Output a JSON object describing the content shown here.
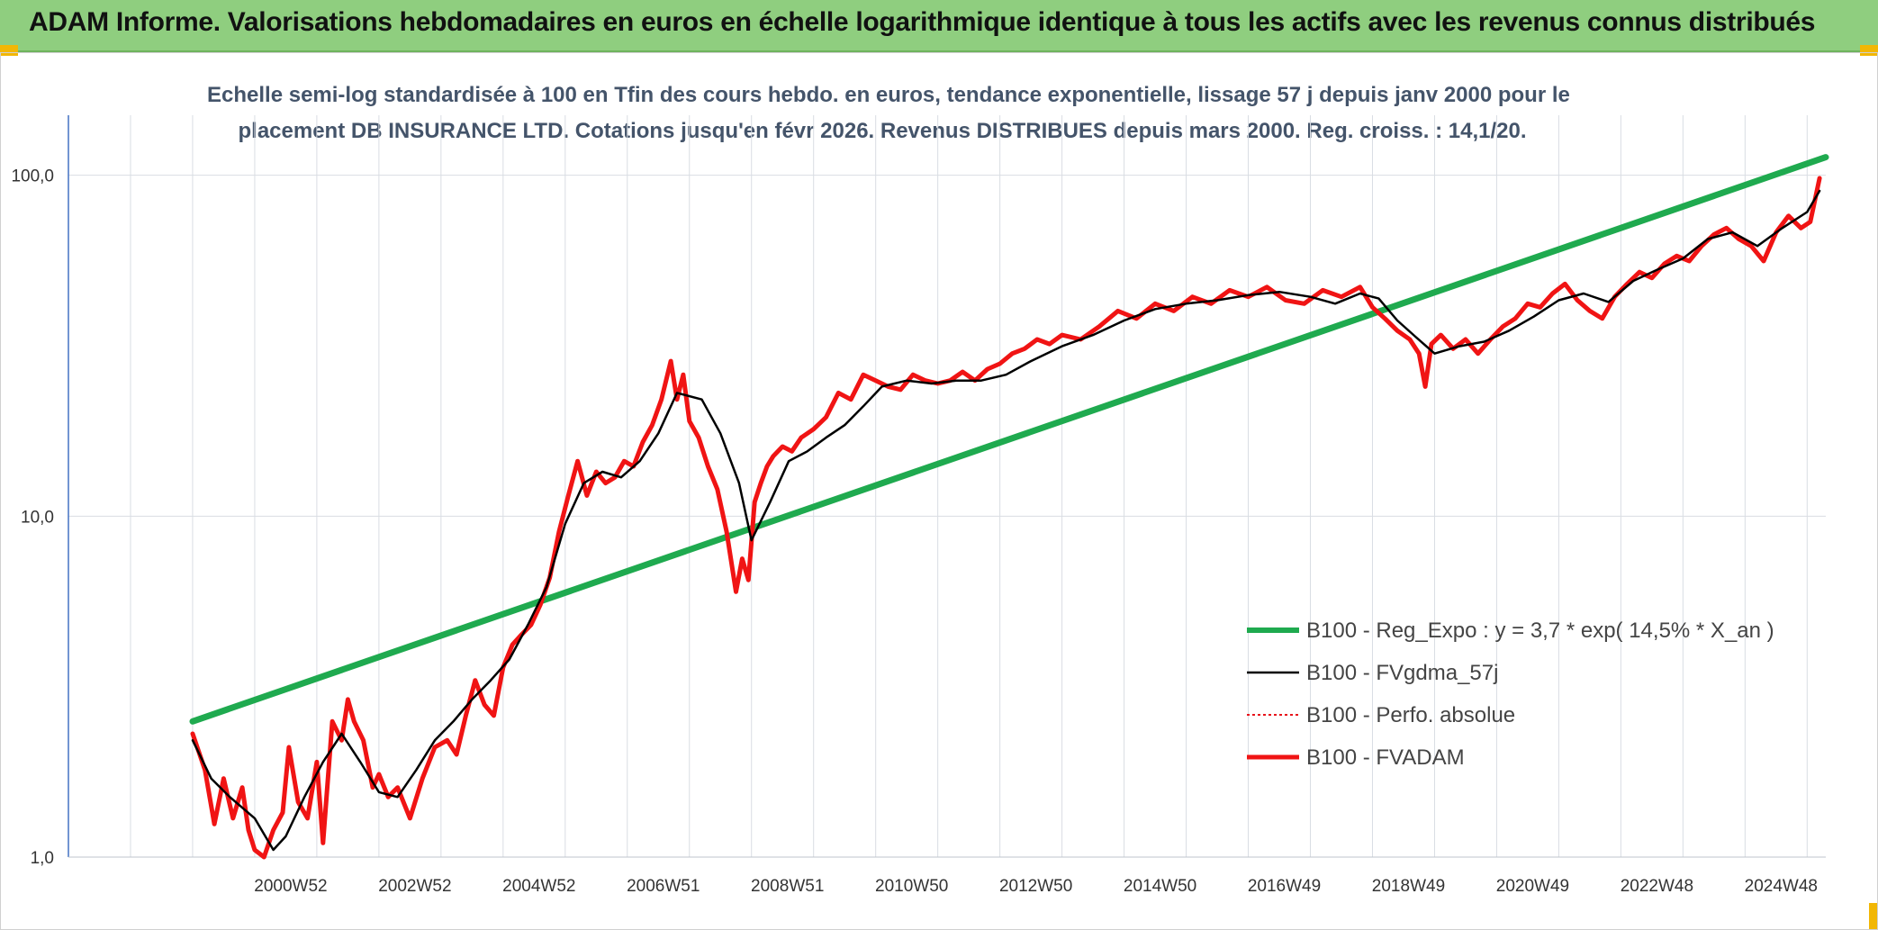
{
  "header": {
    "title": "ADAM Informe. Valorisations hebdomadaires en euros en échelle logarithmique identique à tous les actifs avec les revenus connus distribués"
  },
  "subtitle": {
    "line1": "Echelle semi-log standardisée à 100 en Tfin des cours hebdo. en euros, tendance exponentielle, lissage 57 j depuis janv 2000 pour le",
    "line2": "placement DB INSURANCE LTD. Cotations jusqu'en févr 2026. Revenus DISTRIBUES depuis mars 2000. Reg. croiss. : 14,1/20."
  },
  "colors": {
    "header_bg": "#8fce7f",
    "reg_expo": "#1faa4f",
    "fvgdma": "#000000",
    "perfo": "#e8141c",
    "fvadam": "#f01414",
    "axis": "#4472c4",
    "grid": "#d9dde3"
  },
  "chart_data": {
    "type": "line",
    "y_scale": "log",
    "ylim": [
      1,
      150
    ],
    "y_ticks": [
      "1,0",
      "10,0",
      "100,0"
    ],
    "y_tick_values": [
      1,
      10,
      100
    ],
    "x_range": [
      1998.0,
      2026.3
    ],
    "x_ticks": [
      "2000W52",
      "2002W52",
      "2004W52",
      "2006W51",
      "2008W51",
      "2010W50",
      "2012W50",
      "2014W50",
      "2016W49",
      "2018W49",
      "2020W49",
      "2022W48",
      "2024W48"
    ],
    "x_tick_values": [
      2001.0,
      2003.0,
      2005.0,
      2007.0,
      2009.0,
      2011.0,
      2013.0,
      2015.0,
      2017.0,
      2019.0,
      2021.0,
      2023.0,
      2025.0
    ],
    "grid": true,
    "legend_position": "bottom-right",
    "series": [
      {
        "name": "B100 - Reg_Expo : y = 3,7 * exp( 14,5% *  X_an )",
        "style": "thick-green",
        "x": [
          2000.0,
          2026.3
        ],
        "y": [
          2.5,
          113
        ]
      },
      {
        "name": "B100 - FVgdma_57j",
        "style": "thin-black",
        "x": [
          2000.0,
          2000.3,
          2000.6,
          2001.0,
          2001.3,
          2001.5,
          2001.8,
          2002.1,
          2002.4,
          2002.7,
          2003.0,
          2003.3,
          2003.6,
          2003.9,
          2004.2,
          2004.5,
          2004.8,
          2005.1,
          2005.4,
          2005.7,
          2006.0,
          2006.3,
          2006.6,
          2006.9,
          2007.2,
          2007.5,
          2007.8,
          2008.2,
          2008.5,
          2008.8,
          2009.0,
          2009.3,
          2009.6,
          2009.9,
          2010.2,
          2010.5,
          2010.8,
          2011.1,
          2011.5,
          2011.9,
          2012.3,
          2012.7,
          2013.1,
          2013.5,
          2014.0,
          2014.5,
          2015.0,
          2015.5,
          2016.0,
          2016.5,
          2017.0,
          2017.5,
          2018.0,
          2018.4,
          2018.8,
          2019.1,
          2019.4,
          2019.7,
          2020.0,
          2020.4,
          2020.8,
          2021.2,
          2021.6,
          2022.0,
          2022.4,
          2022.8,
          2023.2,
          2023.6,
          2024.0,
          2024.4,
          2024.8,
          2025.2,
          2025.6,
          2026.0,
          2026.2
        ],
        "y": [
          2.2,
          1.7,
          1.5,
          1.3,
          1.05,
          1.15,
          1.5,
          1.9,
          2.3,
          1.9,
          1.55,
          1.5,
          1.8,
          2.2,
          2.5,
          2.9,
          3.3,
          3.8,
          4.8,
          6.2,
          9.5,
          12.5,
          13.5,
          13.0,
          14.5,
          17.5,
          23,
          22,
          17.5,
          12.5,
          8.5,
          11.0,
          14.5,
          15.5,
          17.0,
          18.5,
          21.0,
          24.0,
          25.0,
          24.5,
          25.0,
          25.0,
          26.0,
          28.5,
          31.5,
          34.0,
          37.5,
          40.5,
          42.0,
          43.0,
          44.5,
          45.5,
          44.0,
          42.0,
          45.0,
          43.5,
          37.5,
          33.5,
          30.0,
          31.5,
          32.5,
          35.0,
          38.5,
          43.0,
          45.0,
          42.5,
          49.0,
          53.0,
          57.0,
          65.0,
          68.0,
          62.0,
          70.0,
          78.0,
          90.0
        ]
      },
      {
        "name": "B100 - Perfo. absolue",
        "style": "dotted-red",
        "x": [],
        "y": []
      },
      {
        "name": "B100 - FVADAM",
        "style": "thick-red",
        "x": [
          2000.0,
          2000.2,
          2000.35,
          2000.5,
          2000.65,
          2000.8,
          2000.9,
          2001.0,
          2001.15,
          2001.3,
          2001.45,
          2001.55,
          2001.7,
          2001.85,
          2002.0,
          2002.1,
          2002.25,
          2002.4,
          2002.5,
          2002.6,
          2002.75,
          2002.9,
          2003.0,
          2003.15,
          2003.3,
          2003.5,
          2003.7,
          2003.9,
          2004.1,
          2004.25,
          2004.4,
          2004.55,
          2004.7,
          2004.85,
          2005.0,
          2005.15,
          2005.3,
          2005.45,
          2005.6,
          2005.75,
          2005.9,
          2006.05,
          2006.2,
          2006.35,
          2006.5,
          2006.65,
          2006.8,
          2006.95,
          2007.1,
          2007.25,
          2007.4,
          2007.55,
          2007.7,
          2007.8,
          2007.9,
          2008.0,
          2008.15,
          2008.3,
          2008.45,
          2008.6,
          2008.75,
          2008.85,
          2008.95,
          2009.05,
          2009.15,
          2009.25,
          2009.35,
          2009.5,
          2009.65,
          2009.8,
          2010.0,
          2010.2,
          2010.4,
          2010.6,
          2010.8,
          2011.0,
          2011.2,
          2011.4,
          2011.6,
          2011.8,
          2012.0,
          2012.2,
          2012.4,
          2012.6,
          2012.8,
          2013.0,
          2013.2,
          2013.4,
          2013.6,
          2013.8,
          2014.0,
          2014.3,
          2014.6,
          2014.9,
          2015.2,
          2015.5,
          2015.8,
          2016.1,
          2016.4,
          2016.7,
          2017.0,
          2017.3,
          2017.6,
          2017.9,
          2018.2,
          2018.5,
          2018.8,
          2019.0,
          2019.2,
          2019.4,
          2019.6,
          2019.75,
          2019.85,
          2019.95,
          2020.1,
          2020.3,
          2020.5,
          2020.7,
          2020.9,
          2021.1,
          2021.3,
          2021.5,
          2021.7,
          2021.9,
          2022.1,
          2022.3,
          2022.5,
          2022.7,
          2022.9,
          2023.1,
          2023.3,
          2023.5,
          2023.7,
          2023.9,
          2024.1,
          2024.3,
          2024.5,
          2024.7,
          2024.9,
          2025.1,
          2025.3,
          2025.5,
          2025.7,
          2025.9,
          2026.05,
          2026.2
        ],
        "y": [
          2.3,
          1.8,
          1.25,
          1.7,
          1.3,
          1.6,
          1.2,
          1.05,
          1.0,
          1.2,
          1.35,
          2.1,
          1.45,
          1.3,
          1.9,
          1.1,
          2.5,
          2.2,
          2.9,
          2.5,
          2.2,
          1.6,
          1.75,
          1.5,
          1.6,
          1.3,
          1.7,
          2.1,
          2.2,
          2.0,
          2.6,
          3.3,
          2.8,
          2.6,
          3.6,
          4.2,
          4.5,
          4.8,
          5.5,
          6.6,
          9.0,
          11.5,
          14.5,
          11.5,
          13.5,
          12.5,
          13.0,
          14.5,
          14.0,
          16.5,
          18.5,
          22.0,
          28.5,
          22.0,
          26.0,
          19.0,
          17.0,
          14.0,
          12.0,
          9.0,
          6.0,
          7.5,
          6.5,
          11.0,
          12.5,
          14.0,
          15.0,
          16.0,
          15.5,
          17.0,
          18.0,
          19.5,
          23.0,
          22.0,
          26.0,
          25.0,
          24.0,
          23.5,
          26.0,
          25.0,
          24.5,
          25.0,
          26.5,
          25.0,
          27.0,
          28.0,
          30.0,
          31.0,
          33.0,
          32.0,
          34.0,
          33.0,
          36.0,
          40.0,
          38.0,
          42.0,
          40.0,
          44.0,
          42.0,
          46.0,
          44.0,
          47.0,
          43.0,
          42.0,
          46.0,
          44.0,
          47.0,
          41.0,
          38.0,
          35.0,
          33.0,
          30.0,
          24.0,
          32.0,
          34.0,
          31.0,
          33.0,
          30.0,
          33.0,
          36.0,
          38.0,
          42.0,
          41.0,
          45.0,
          48.0,
          43.0,
          40.0,
          38.0,
          44.0,
          48.0,
          52.0,
          50.0,
          55.0,
          58.0,
          56.0,
          62.0,
          67.0,
          70.0,
          65.0,
          62.0,
          56.0,
          68.0,
          76.0,
          70.0,
          73.0,
          98.0
        ]
      }
    ]
  }
}
